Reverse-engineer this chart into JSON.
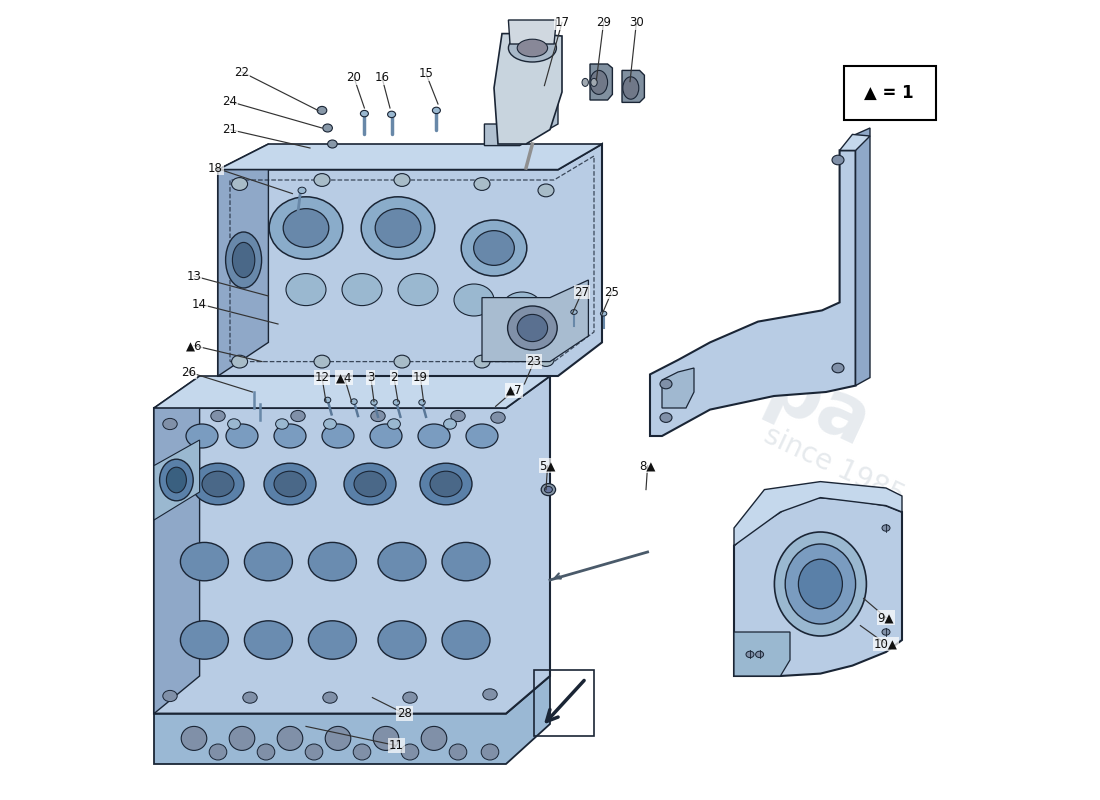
{
  "bg": "#ffffff",
  "mc": "#b8cce4",
  "mc2": "#c5d8ec",
  "dc": "#8fa8c8",
  "oc": "#1a2535",
  "lc": "#333333",
  "legend": "▲ = 1",
  "wm1": "since 1985",
  "labels": {
    "22": [
      0.115,
      0.91,
      0.21,
      0.862
    ],
    "24": [
      0.1,
      0.873,
      0.215,
      0.84
    ],
    "21": [
      0.1,
      0.838,
      0.2,
      0.815
    ],
    "20": [
      0.255,
      0.903,
      0.268,
      0.865
    ],
    "16": [
      0.29,
      0.903,
      0.3,
      0.865
    ],
    "15": [
      0.345,
      0.908,
      0.36,
      0.87
    ],
    "18": [
      0.082,
      0.79,
      0.178,
      0.758
    ],
    "17": [
      0.515,
      0.972,
      0.493,
      0.893
    ],
    "29": [
      0.567,
      0.972,
      0.558,
      0.9
    ],
    "30": [
      0.608,
      0.972,
      0.6,
      0.898
    ],
    "27": [
      0.54,
      0.635,
      0.528,
      0.608
    ],
    "25": [
      0.577,
      0.635,
      0.565,
      0.607
    ],
    "13": [
      0.055,
      0.655,
      0.148,
      0.63
    ],
    "14": [
      0.062,
      0.62,
      0.16,
      0.595
    ],
    "▲6": [
      0.055,
      0.568,
      0.14,
      0.548
    ],
    "26": [
      0.048,
      0.535,
      0.128,
      0.51
    ],
    "12": [
      0.215,
      0.528,
      0.22,
      0.498
    ],
    "▲4": [
      0.243,
      0.528,
      0.252,
      0.498
    ],
    "3": [
      0.276,
      0.528,
      0.28,
      0.498
    ],
    "2": [
      0.305,
      0.528,
      0.31,
      0.498
    ],
    "19": [
      0.338,
      0.528,
      0.342,
      0.498
    ],
    "23": [
      0.48,
      0.548,
      0.468,
      0.52
    ],
    "▲7": [
      0.455,
      0.512,
      0.432,
      0.492
    ],
    "5▲": [
      0.497,
      0.418,
      0.495,
      0.388
    ],
    "8▲": [
      0.622,
      0.418,
      0.62,
      0.388
    ],
    "28": [
      0.318,
      0.108,
      0.278,
      0.128
    ],
    "11": [
      0.308,
      0.068,
      0.195,
      0.092
    ],
    "9▲": [
      0.92,
      0.228,
      0.892,
      0.252
    ],
    "10▲": [
      0.92,
      0.195,
      0.888,
      0.218
    ]
  }
}
